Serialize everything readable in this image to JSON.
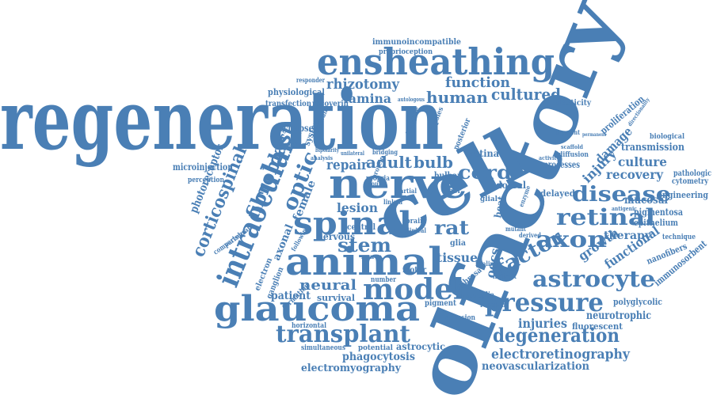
{
  "color": "#4a7fb5",
  "words": [
    {
      "text": "regeneration"
    },
    {
      "text": "olfactory"
    },
    {
      "text": "cell"
    },
    {
      "text": "ensheathing"
    },
    {
      "text": "nerve"
    },
    {
      "text": "animal"
    },
    {
      "text": "glaucoma"
    },
    {
      "text": "spinal"
    },
    {
      "text": "intraocular"
    },
    {
      "text": "fibroblast"
    },
    {
      "text": "corticospinal"
    },
    {
      "text": "optic"
    },
    {
      "text": "model"
    },
    {
      "text": "transplant"
    },
    {
      "text": "pressure"
    },
    {
      "text": "astrocyte"
    },
    {
      "text": "disease"
    },
    {
      "text": "retinal"
    },
    {
      "text": "axon"
    },
    {
      "text": "factor"
    },
    {
      "text": "degeneration"
    },
    {
      "text": "cord"
    },
    {
      "text": "electroretinography"
    },
    {
      "text": "rhizotomy"
    },
    {
      "text": "human"
    },
    {
      "text": "cultured"
    },
    {
      "text": "function"
    },
    {
      "text": "lamina"
    },
    {
      "text": "physiological"
    },
    {
      "text": "transfection"
    },
    {
      "text": "recoverin"
    },
    {
      "text": "immunoincompatible"
    },
    {
      "text": "proprioception"
    },
    {
      "text": "adult"
    },
    {
      "text": "repair"
    },
    {
      "text": "bulb"
    },
    {
      "text": "bulbar"
    },
    {
      "text": "lesion"
    },
    {
      "text": "stem"
    },
    {
      "text": "rat"
    },
    {
      "text": "tissue"
    },
    {
      "text": "neural"
    },
    {
      "text": "patient"
    },
    {
      "text": "survival"
    },
    {
      "text": "nervous"
    },
    {
      "text": "axonal"
    },
    {
      "text": "female"
    },
    {
      "text": "injury"
    },
    {
      "text": "damage"
    },
    {
      "text": "culture"
    },
    {
      "text": "recovery"
    },
    {
      "text": "growth"
    },
    {
      "text": "functional"
    },
    {
      "text": "therapy"
    },
    {
      "text": "mucosal"
    },
    {
      "text": "pigmentosa"
    },
    {
      "text": "epithelium"
    },
    {
      "text": "engineering"
    },
    {
      "text": "cytometry"
    },
    {
      "text": "pathologic"
    },
    {
      "text": "biological"
    },
    {
      "text": "transmission"
    },
    {
      "text": "proliferation"
    },
    {
      "text": "plasticity"
    },
    {
      "text": "neurotrophic"
    },
    {
      "text": "fluorescent"
    },
    {
      "text": "polyglycolic"
    },
    {
      "text": "injuries"
    },
    {
      "text": "nanofibers"
    },
    {
      "text": "immunosorbent"
    },
    {
      "text": "technique"
    },
    {
      "text": "neovascularization"
    },
    {
      "text": "electromyography"
    },
    {
      "text": "phagocytosis"
    },
    {
      "text": "astrocytic"
    },
    {
      "text": "potential"
    },
    {
      "text": "simultaneous"
    },
    {
      "text": "horizontal"
    },
    {
      "text": "microinjection"
    },
    {
      "text": "photoreceptor"
    },
    {
      "text": "perception"
    },
    {
      "text": "synapse"
    },
    {
      "text": "system"
    },
    {
      "text": "imaging"
    },
    {
      "text": "schwann"
    },
    {
      "text": "electron"
    },
    {
      "text": "ganglion"
    },
    {
      "text": "formation"
    },
    {
      "text": "comparison"
    },
    {
      "text": "vertebrate"
    },
    {
      "text": "following"
    },
    {
      "text": "motor"
    },
    {
      "text": "central"
    },
    {
      "text": "glia"
    },
    {
      "text": "glial"
    },
    {
      "text": "retina"
    },
    {
      "text": "dorsal"
    },
    {
      "text": "processes"
    },
    {
      "text": "delayed"
    },
    {
      "text": "diffusion"
    },
    {
      "text": "segment"
    },
    {
      "text": "oecs"
    },
    {
      "text": "heat"
    },
    {
      "text": "neuroglia"
    },
    {
      "text": "cribrosa"
    },
    {
      "text": "pigment"
    },
    {
      "text": "adhesion"
    },
    {
      "text": "receptor"
    },
    {
      "text": "number"
    },
    {
      "text": "brain"
    },
    {
      "text": "bridging"
    },
    {
      "text": "protein"
    },
    {
      "text": "fiber"
    },
    {
      "text": "propria"
    },
    {
      "text": "response"
    },
    {
      "text": "biopsies"
    },
    {
      "text": "posterior"
    },
    {
      "text": "responder"
    },
    {
      "text": "autologous"
    },
    {
      "text": "mutant"
    },
    {
      "text": "derived"
    },
    {
      "text": "indirect"
    },
    {
      "text": "healing"
    },
    {
      "text": "clinical"
    },
    {
      "text": "neuron"
    },
    {
      "text": "activity"
    },
    {
      "text": "scaffold"
    },
    {
      "text": "antigenic"
    },
    {
      "text": "enzyme"
    },
    {
      "text": "linked"
    },
    {
      "text": "wound"
    },
    {
      "text": "partial"
    },
    {
      "text": "unilateral"
    },
    {
      "text": "bipolarity"
    },
    {
      "text": "analysis"
    },
    {
      "text": "permanent"
    },
    {
      "text": "directionality"
    }
  ]
}
